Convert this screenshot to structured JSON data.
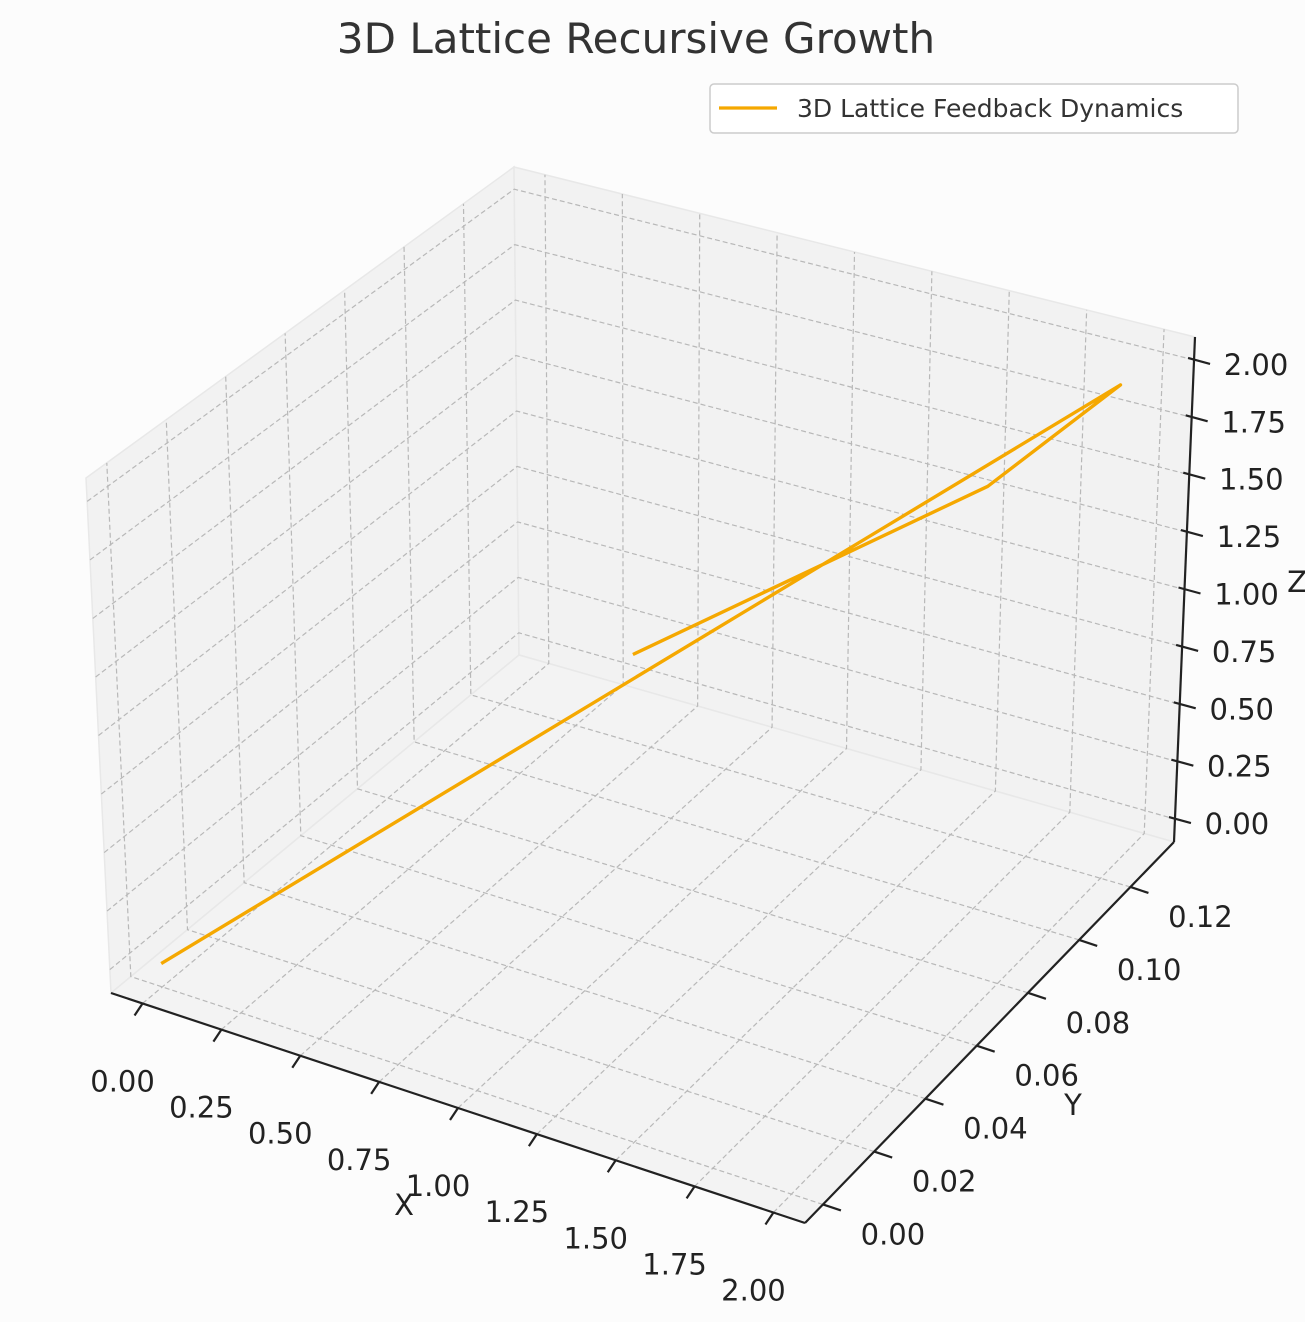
{
  "chart_data": {
    "type": "line",
    "projection": "3d",
    "title": "3D Lattice Recursive Growth",
    "xlabel": "X",
    "ylabel": "Y",
    "zlabel": "Z",
    "xlim": [
      -0.1,
      2.1
    ],
    "ylim": [
      -0.007,
      0.137
    ],
    "zlim": [
      -0.1,
      2.1
    ],
    "x_ticks": [
      "0.00",
      "0.25",
      "0.50",
      "0.75",
      "1.00",
      "1.25",
      "1.50",
      "1.75",
      "2.00"
    ],
    "y_ticks": [
      "0.00",
      "0.02",
      "0.04",
      "0.06",
      "0.08",
      "0.10",
      "0.12"
    ],
    "z_ticks": [
      "0.00",
      "0.25",
      "0.50",
      "0.75",
      "1.00",
      "1.25",
      "1.50",
      "1.75",
      "2.00"
    ],
    "grid": true,
    "legend_position": "top-right",
    "series": [
      {
        "name": "3D Lattice Feedback Dynamics",
        "color": "#f5a800",
        "points": [
          {
            "x": 0.0,
            "y": 0.0,
            "z": 0.0
          },
          {
            "x": 2.0,
            "y": 0.13,
            "z": 2.0
          },
          {
            "x": 1.55,
            "y": 0.13,
            "z": 1.37
          },
          {
            "x": 0.35,
            "y": 0.13,
            "z": 0.15
          }
        ]
      }
    ]
  }
}
